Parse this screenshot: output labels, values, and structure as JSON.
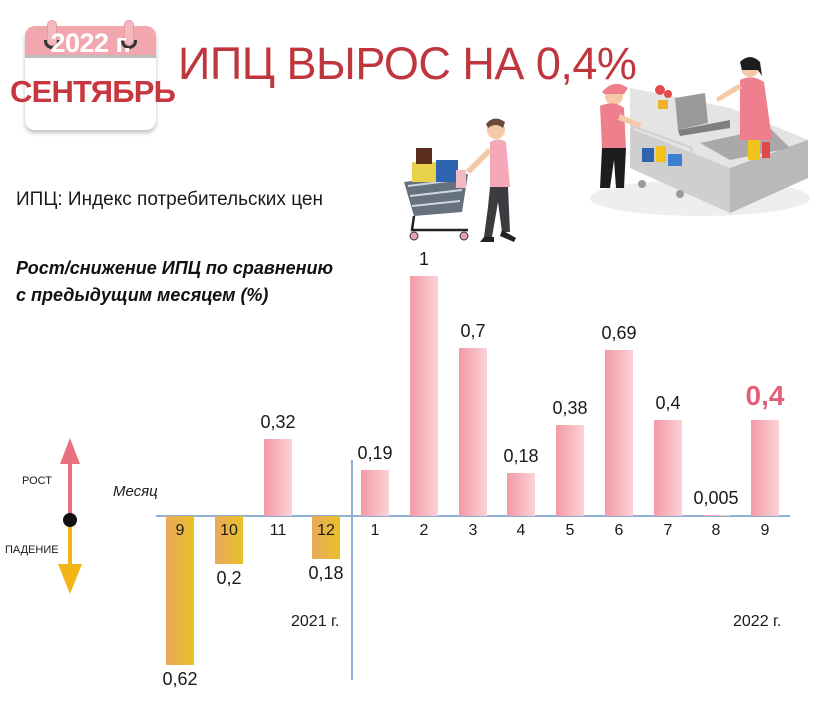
{
  "calendar": {
    "year": "2022 г.",
    "month": "СЕНТЯБРЬ"
  },
  "headline": "ИПЦ ВЫРОС НА 0,4%",
  "subtitle": "ИПЦ: Индекс потребительских цен",
  "legend": {
    "up_label": "РОСТ",
    "down_label": "ПАДЕНИЕ",
    "up_color": "#e8707f",
    "down_color": "#f2b515"
  },
  "colors": {
    "headline": "#c0363e",
    "positive_bar": "#f39aa5",
    "negative_bar": "#e6b44a",
    "axis": "#8fb0d6",
    "highlight": "#e0607a"
  },
  "chart_data": {
    "type": "bar",
    "title": "Рост/снижение ИПЦ по сравнению с предыдущим месяцем (%)",
    "xlabel": "Месяц",
    "ylabel": "",
    "categories": [
      "9",
      "10",
      "11",
      "12",
      "1",
      "2",
      "3",
      "4",
      "5",
      "6",
      "7",
      "8",
      "9"
    ],
    "values": [
      -0.62,
      -0.2,
      0.32,
      -0.18,
      0.19,
      1,
      0.7,
      0.18,
      0.38,
      0.69,
      0.4,
      0.005,
      0.4
    ],
    "value_labels": [
      "0,62",
      "0,2",
      "0,32",
      "0,18",
      "0,19",
      "1",
      "0,7",
      "0,18",
      "0,38",
      "0,69",
      "0,4",
      "0,005",
      "0,4"
    ],
    "groups": [
      {
        "label": "2021 г.",
        "categories": [
          "9",
          "10",
          "11",
          "12"
        ]
      },
      {
        "label": "2022 г.",
        "categories": [
          "1",
          "2",
          "3",
          "4",
          "5",
          "6",
          "7",
          "8",
          "9"
        ]
      }
    ],
    "highlight_index": 12,
    "ylim": [
      -0.7,
      1.05
    ],
    "grid": false,
    "legend_position": "left"
  }
}
